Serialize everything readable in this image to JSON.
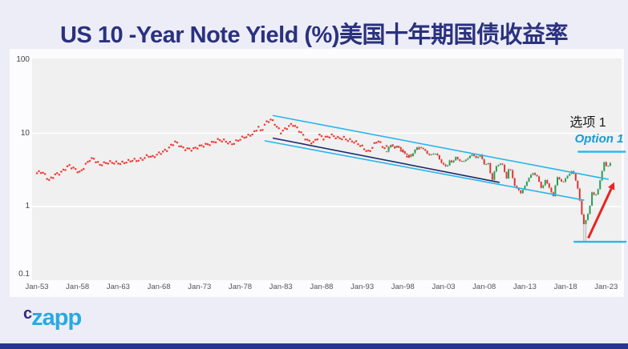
{
  "title": "US 10 -Year Note Yield (%)美国十年期国债收益率",
  "logo": {
    "prefix": "c",
    "name": "zapp"
  },
  "annotations": {
    "option_cn": "选项 1",
    "option_en": "Option 1"
  },
  "colors": {
    "background": "#EDEDF7",
    "card": "#FCFCFE",
    "plot_bg": "#F0F0F0",
    "grid": "#FFFFFF",
    "title": "#2A317E",
    "dots": "#EE3B33",
    "candle_up": "#23A14E",
    "candle_down": "#E2332D",
    "wick": "#999999",
    "channel_cyan": "#29B5EA",
    "channel_navy": "#1B2A6B",
    "arrow_red": "#E8251F",
    "option_text_cyan": "#189BD8",
    "logo_c": "#312783",
    "logo_zapp": "#29A9E1",
    "bottom_bar": "#283593"
  },
  "chart_data": {
    "type": "mixed-scatter-candlestick",
    "title": "US 10 -Year Note Yield (%)",
    "y_scale": "log",
    "y_ticks": {
      "labels": [
        "100",
        "10",
        "1",
        "0.1"
      ],
      "values": [
        100,
        10,
        1,
        0.1
      ]
    },
    "x_ticks": {
      "labels": [
        "Jan-53",
        "Jan-58",
        "Jan-63",
        "Jan-68",
        "Jan-73",
        "Jan-78",
        "Jan-83",
        "Jan-88",
        "Jan-93",
        "Jan-98",
        "Jan-03",
        "Jan-08",
        "Jan-13",
        "Jan-18",
        "Jan-23"
      ],
      "years": [
        1953,
        1958,
        1963,
        1968,
        1973,
        1978,
        1983,
        1988,
        1993,
        1998,
        2003,
        2008,
        2013,
        2018,
        2023
      ]
    },
    "x_range_years": [
      1952.4,
      2024.9
    ],
    "y_range_values": [
      0.099,
      105
    ],
    "grid_values": [
      10,
      1
    ],
    "dot_series": {
      "name": "monthly-yield-dots",
      "step_years": 0.25,
      "anchors": [
        [
          1953.0,
          2.85
        ],
        [
          1953.6,
          2.95
        ],
        [
          1954.5,
          2.3
        ],
        [
          1955.2,
          2.75
        ],
        [
          1956.0,
          2.9
        ],
        [
          1957.0,
          3.6
        ],
        [
          1957.9,
          3.2
        ],
        [
          1958.3,
          2.9
        ],
        [
          1959.5,
          4.3
        ],
        [
          1960.0,
          4.5
        ],
        [
          1960.7,
          3.8
        ],
        [
          1961.5,
          3.9
        ],
        [
          1962.5,
          3.95
        ],
        [
          1963.5,
          4.0
        ],
        [
          1964.5,
          4.15
        ],
        [
          1965.5,
          4.3
        ],
        [
          1966.7,
          5.0
        ],
        [
          1967.2,
          4.6
        ],
        [
          1968.3,
          5.5
        ],
        [
          1969.0,
          6.1
        ],
        [
          1970.0,
          7.5
        ],
        [
          1970.9,
          6.3
        ],
        [
          1971.6,
          6.2
        ],
        [
          1972.3,
          6.1
        ],
        [
          1973.5,
          6.8
        ],
        [
          1974.6,
          7.6
        ],
        [
          1975.3,
          8.0
        ],
        [
          1976.2,
          7.7
        ],
        [
          1977.0,
          7.3
        ],
        [
          1978.0,
          8.3
        ],
        [
          1979.0,
          9.1
        ],
        [
          1979.8,
          10.5
        ],
        [
          1980.25,
          12.6
        ],
        [
          1980.55,
          10.2
        ],
        [
          1981.0,
          13.0
        ],
        [
          1981.75,
          15.3
        ],
        [
          1982.2,
          14.0
        ],
        [
          1983.0,
          10.5
        ],
        [
          1983.6,
          11.4
        ],
        [
          1984.45,
          13.2
        ],
        [
          1985.2,
          11.4
        ],
        [
          1986.3,
          7.8
        ],
        [
          1987.0,
          7.3
        ],
        [
          1987.8,
          9.6
        ],
        [
          1988.3,
          8.7
        ],
        [
          1989.2,
          9.2
        ],
        [
          1990.0,
          8.5
        ],
        [
          1990.7,
          8.8
        ],
        [
          1991.5,
          8.0
        ],
        [
          1992.5,
          7.1
        ],
        [
          1993.3,
          6.2
        ],
        [
          1993.8,
          5.6
        ],
        [
          1994.9,
          7.9
        ],
        [
          1995.7,
          6.3
        ],
        [
          1996.4,
          6.8
        ],
        [
          1997.2,
          6.6
        ],
        [
          1998.1,
          5.5
        ],
        [
          1998.8,
          4.7
        ],
        [
          1999.6,
          6.0
        ],
        [
          2000.1,
          6.5
        ]
      ]
    },
    "candle_series": {
      "name": "quarterly-yield-candles",
      "step_years": 0.25,
      "start_year": 1996.0,
      "end_year": 2023.55,
      "crash_low": 0.33,
      "close_anchors": [
        [
          1996.0,
          5.6
        ],
        [
          1996.4,
          6.9
        ],
        [
          1997.0,
          6.6
        ],
        [
          1997.6,
          6.3
        ],
        [
          1998.0,
          5.6
        ],
        [
          1998.8,
          4.65
        ],
        [
          1999.5,
          5.9
        ],
        [
          2000.1,
          6.6
        ],
        [
          2000.6,
          6.0
        ],
        [
          2001.1,
          5.0
        ],
        [
          2001.6,
          5.3
        ],
        [
          2002.2,
          5.1
        ],
        [
          2002.8,
          3.9
        ],
        [
          2003.4,
          3.35
        ],
        [
          2003.7,
          4.4
        ],
        [
          2004.1,
          3.9
        ],
        [
          2004.5,
          4.7
        ],
        [
          2005.0,
          4.25
        ],
        [
          2005.4,
          4.0
        ],
        [
          2006.4,
          5.15
        ],
        [
          2007.0,
          4.65
        ],
        [
          2007.5,
          5.1
        ],
        [
          2008.0,
          3.75
        ],
        [
          2008.5,
          3.95
        ],
        [
          2008.95,
          2.15
        ],
        [
          2009.4,
          3.6
        ],
        [
          2010.2,
          3.85
        ],
        [
          2010.75,
          2.45
        ],
        [
          2011.1,
          3.55
        ],
        [
          2011.75,
          1.95
        ],
        [
          2012.5,
          1.5
        ],
        [
          2013.0,
          1.95
        ],
        [
          2013.95,
          2.95
        ],
        [
          2014.5,
          2.55
        ],
        [
          2015.05,
          1.75
        ],
        [
          2015.5,
          2.3
        ],
        [
          2016.5,
          1.4
        ],
        [
          2016.95,
          2.5
        ],
        [
          2017.7,
          2.15
        ],
        [
          2018.85,
          3.2
        ],
        [
          2019.6,
          1.6
        ],
        [
          2020.2,
          0.55
        ],
        [
          2020.6,
          0.68
        ],
        [
          2021.05,
          1.1
        ],
        [
          2021.3,
          1.7
        ],
        [
          2021.6,
          1.3
        ],
        [
          2022.0,
          1.75
        ],
        [
          2022.8,
          4.2
        ],
        [
          2023.05,
          3.45
        ],
        [
          2023.5,
          3.95
        ]
      ]
    },
    "trend_lines": [
      {
        "name": "channel-upper-line",
        "color_key": "channel_cyan",
        "width": 1.6,
        "year1": 1982.0,
        "value1": 17.5,
        "year2": 2023.3,
        "value2": 2.35
      },
      {
        "name": "channel-lower-line",
        "color_key": "channel_cyan",
        "width": 1.6,
        "year1": 1981.0,
        "value1": 7.9,
        "year2": 2020.3,
        "value2": 1.22
      },
      {
        "name": "channel-median-line",
        "color_key": "channel_navy",
        "width": 1.6,
        "year1": 1982.0,
        "value1": 8.6,
        "year2": 2009.9,
        "value2": 2.13
      }
    ],
    "annotation_lines": [
      {
        "name": "option-resistance-line",
        "color_key": "channel_cyan",
        "width": 2.4,
        "year1": 2019.5,
        "value1": 5.6,
        "year2": 2025.4,
        "value2": 5.6
      },
      {
        "name": "bottom-support-line",
        "color_key": "channel_cyan",
        "width": 2.4,
        "year1": 2019.0,
        "value1": 0.33,
        "year2": 2025.6,
        "value2": 0.33
      }
    ],
    "projection_arrow": {
      "year1": 2020.8,
      "value1": 0.37,
      "year2": 2024.0,
      "value2": 2.15
    }
  }
}
